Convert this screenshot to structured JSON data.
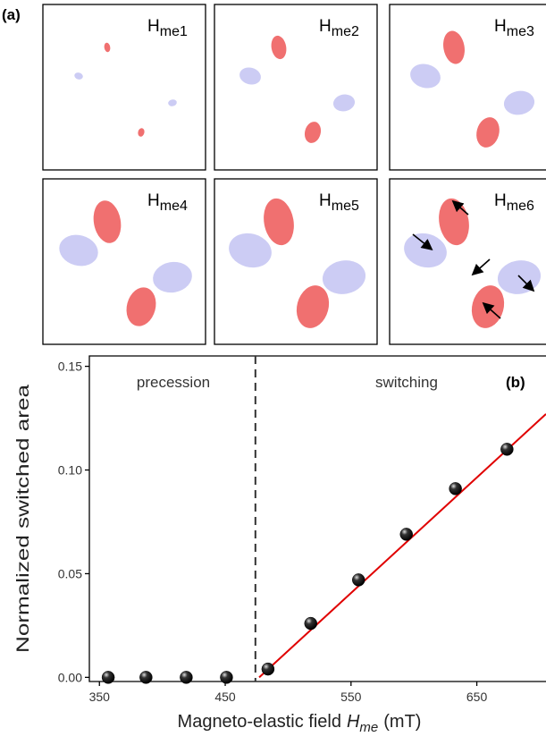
{
  "panel_a": {
    "label": "(a)",
    "panels": [
      {
        "main": "H",
        "sub": "me1"
      },
      {
        "main": "H",
        "sub": "me2"
      },
      {
        "main": "H",
        "sub": "me3"
      },
      {
        "main": "H",
        "sub": "me4"
      },
      {
        "main": "H",
        "sub": "me5"
      },
      {
        "main": "H",
        "sub": "me6"
      }
    ]
  },
  "chart_data": {
    "type": "scatter",
    "panel_label": "(b)",
    "x_label": {
      "text": "Magneto-elastic field",
      "symbol": "H",
      "symbol_sub": "me",
      "unit": "(mT)"
    },
    "y_label": "Normalized switched area",
    "annotations": [
      "precession",
      "switching"
    ],
    "x": [
      357,
      387,
      419,
      451,
      484,
      518,
      556,
      594,
      633,
      674
    ],
    "values": [
      0,
      0,
      0,
      0,
      0.004,
      0.026,
      0.047,
      0.069,
      0.091,
      0.11
    ],
    "color": "#000000",
    "fit": {
      "x": [
        477,
        705
      ],
      "y": [
        0,
        0.127
      ],
      "color": "#e00000"
    },
    "threshold": 474,
    "xlim": [
      342,
      705
    ],
    "ylim": [
      -0.002,
      0.155
    ],
    "xticks": [
      350,
      450,
      550,
      650
    ],
    "yticks": [
      {
        "value": 0,
        "label": "0.00"
      },
      {
        "value": 0.05,
        "label": "0.05"
      },
      {
        "value": 0.1,
        "label": "0.10"
      },
      {
        "value": 0.15,
        "label": "0.15"
      }
    ]
  }
}
